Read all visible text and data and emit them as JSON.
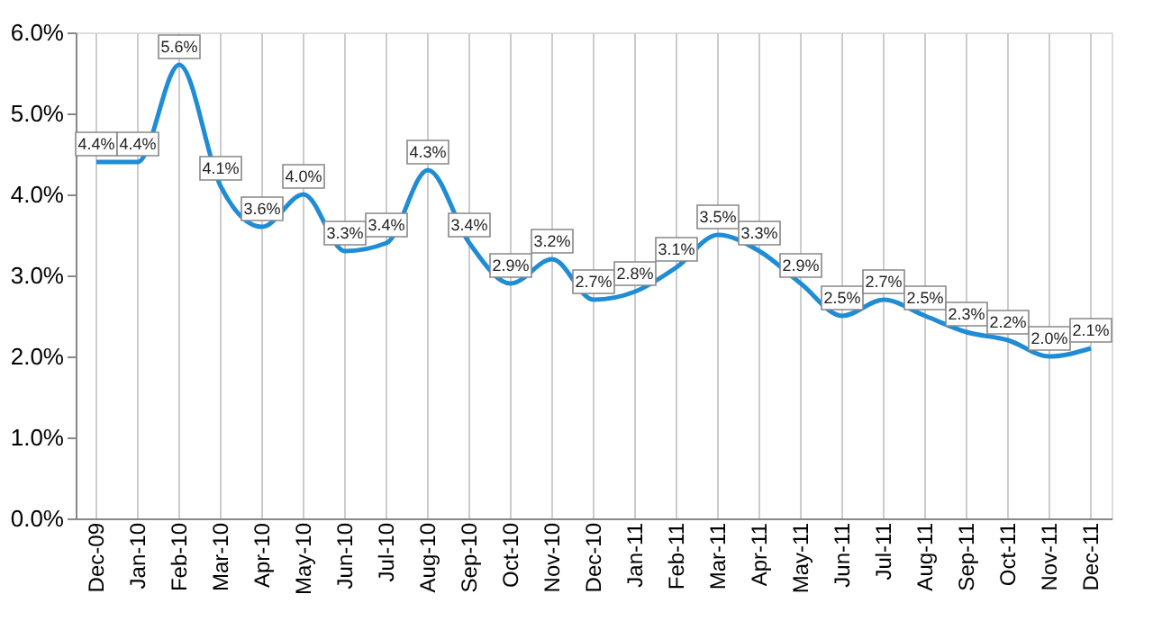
{
  "chart_data": {
    "type": "line",
    "categories": [
      "Dec-09",
      "Jan-10",
      "Feb-10",
      "Mar-10",
      "Apr-10",
      "May-10",
      "Jun-10",
      "Jul-10",
      "Aug-10",
      "Sep-10",
      "Oct-10",
      "Nov-10",
      "Dec-10",
      "Jan-11",
      "Feb-11",
      "Mar-11",
      "Apr-11",
      "May-11",
      "Jun-11",
      "Jul-11",
      "Aug-11",
      "Sep-11",
      "Oct-11",
      "Nov-11",
      "Dec-11"
    ],
    "series": [
      {
        "color": "#1f8dd6",
        "values": [
          4.4,
          4.4,
          5.6,
          4.1,
          3.6,
          4.0,
          3.3,
          3.4,
          4.3,
          3.4,
          2.9,
          3.2,
          2.7,
          2.8,
          3.1,
          3.5,
          3.3,
          2.9,
          2.5,
          2.7,
          2.5,
          2.3,
          2.2,
          2.0,
          2.1
        ]
      }
    ],
    "value_labels": [
      "4.4%",
      "4.4%",
      "5.6%",
      "4.1%",
      "3.6%",
      "4.0%",
      "3.3%",
      "3.4%",
      "4.3%",
      "3.4%",
      "2.9%",
      "3.2%",
      "2.7%",
      "2.8%",
      "3.1%",
      "3.5%",
      "3.3%",
      "2.9%",
      "2.5%",
      "2.7%",
      "2.5%",
      "2.3%",
      "2.2%",
      "2.0%",
      "2.1%"
    ],
    "ylim": [
      0,
      6
    ],
    "yticks": [
      {
        "value": 0,
        "label": "0.0%"
      },
      {
        "value": 1,
        "label": "1.0%"
      },
      {
        "value": 2,
        "label": "2.0%"
      },
      {
        "value": 3,
        "label": "3.0%"
      },
      {
        "value": 4,
        "label": "4.0%"
      },
      {
        "value": 5,
        "label": "5.0%"
      },
      {
        "value": 6,
        "label": "6.0%"
      }
    ],
    "grid": "x",
    "marker": "none",
    "line_style": "solid"
  }
}
